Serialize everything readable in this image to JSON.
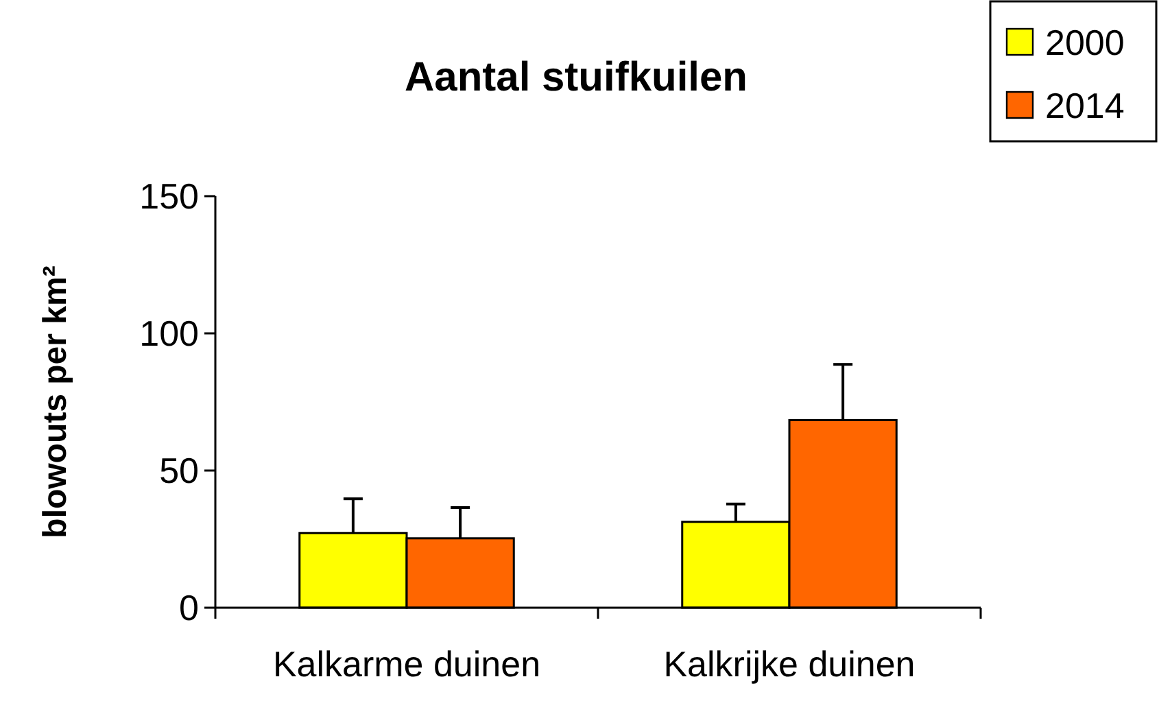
{
  "chart_data": {
    "type": "bar",
    "title": "Aantal stuifkuilen",
    "ylabel": "blowouts per km²",
    "categories": [
      "Kalkarme duinen",
      "Kalkrijke duinen"
    ],
    "series": [
      {
        "name": "2000",
        "color": "#ffff00",
        "values": [
          27.2,
          31.3
        ],
        "errors": [
          [
            27.2,
            39.7
          ],
          [
            31.3,
            37.8
          ]
        ]
      },
      {
        "name": "2014",
        "color": "#ff6600",
        "values": [
          25.3,
          68.4
        ],
        "errors": [
          [
            25.3,
            36.5
          ],
          [
            68.4,
            88.7
          ]
        ]
      }
    ],
    "ylim": [
      0,
      150
    ],
    "yticks": [
      0,
      50,
      100,
      150
    ],
    "grid": false,
    "legend": "top right"
  }
}
